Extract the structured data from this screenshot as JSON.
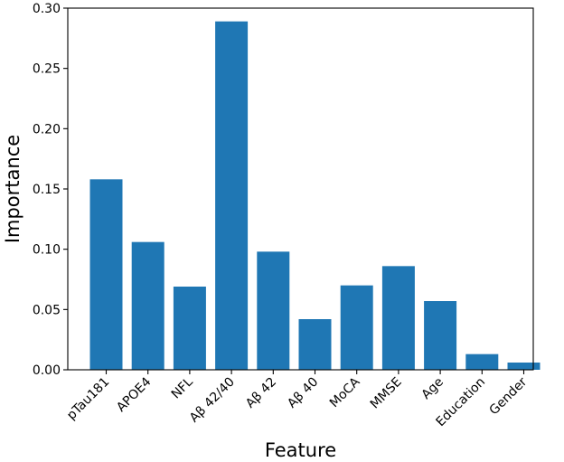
{
  "chart_data": {
    "type": "bar",
    "title": "",
    "xlabel": "Feature",
    "ylabel": "Importance",
    "categories": [
      "pTau181",
      "APOE4",
      "NFL",
      "Aβ 42/40",
      "Aβ 42",
      "Aβ 40",
      "MoCA",
      "MMSE",
      "Age",
      "Education",
      "Gender"
    ],
    "values": [
      0.158,
      0.106,
      0.069,
      0.289,
      0.098,
      0.042,
      0.07,
      0.086,
      0.057,
      0.013,
      0.006
    ],
    "ylim": [
      0,
      0.3
    ],
    "yticks": [
      0.0,
      0.05,
      0.1,
      0.15,
      0.2,
      0.25,
      0.3
    ],
    "ytick_labels": [
      "0.00",
      "0.05",
      "0.10",
      "0.15",
      "0.20",
      "0.25",
      "0.30"
    ],
    "bar_color": "#1f77b4",
    "grid": false,
    "legend": false
  }
}
